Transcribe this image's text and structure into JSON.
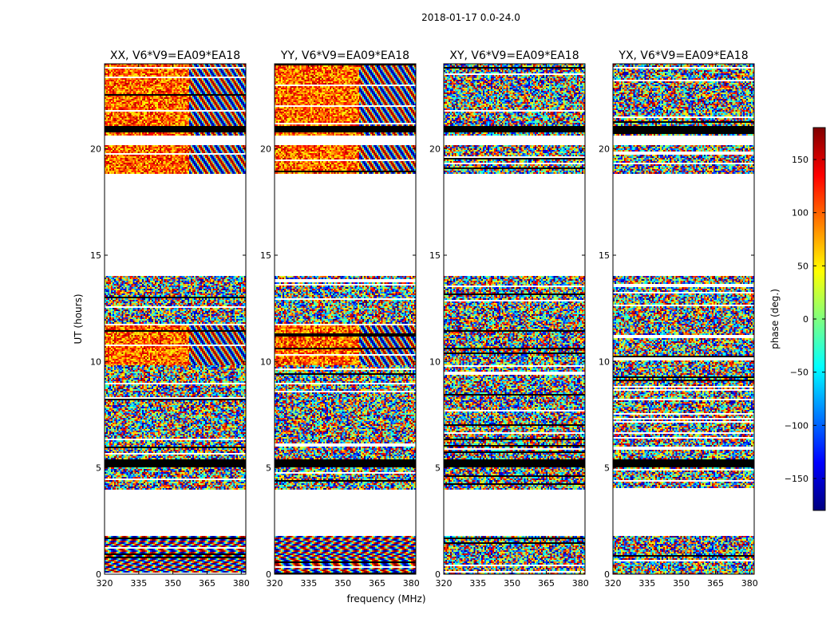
{
  "suptitle": "2018-01-17 0.0-24.0",
  "ylabel": "UT (hours)",
  "xlabel": "frequency (MHz)",
  "colorbar": {
    "label": "phase (deg.)",
    "ticks": [
      150,
      100,
      50,
      0,
      -50,
      -100,
      -150
    ],
    "tick_labels": [
      "150",
      "100",
      "50",
      "0",
      "−50",
      "−100",
      "−150"
    ],
    "range": [
      -180,
      180
    ],
    "colormap": "jet",
    "colors": [
      "#00007f",
      "#0000ff",
      "#007fff",
      "#00ffff",
      "#7fff7f",
      "#ffff00",
      "#ff7f00",
      "#ff0000",
      "#7f0000"
    ]
  },
  "chart_data": [
    {
      "type": "heatmap",
      "title": "XX, V6*V9=EA09*EA18",
      "x_ticks": [
        320,
        335,
        350,
        365,
        380
      ],
      "xlim": [
        320,
        382
      ],
      "y_ticks": [
        0,
        5,
        10,
        15,
        20
      ],
      "ylim": [
        0,
        24
      ],
      "value": "phase (deg.)",
      "flagged_ut": [
        [
          1.8,
          4.0
        ],
        [
          14.0,
          18.8
        ],
        [
          20.2,
          20.6
        ]
      ],
      "note_bands": [
        [
          5.0,
          5.4
        ],
        [
          20.8,
          21.1
        ]
      ]
    },
    {
      "type": "heatmap",
      "title": "YY, V6*V9=EA09*EA18",
      "x_ticks": [
        320,
        335,
        350,
        365,
        380
      ],
      "xlim": [
        320,
        382
      ],
      "y_ticks": [
        0,
        5,
        10,
        15,
        20
      ],
      "ylim": [
        0,
        24
      ],
      "value": "phase (deg.)",
      "flagged_ut": [
        [
          1.8,
          4.0
        ],
        [
          14.0,
          18.8
        ],
        [
          20.2,
          20.6
        ]
      ],
      "note_bands": [
        [
          5.0,
          5.4
        ],
        [
          20.8,
          21.1
        ]
      ]
    },
    {
      "type": "heatmap",
      "title": "XY, V6*V9=EA09*EA18",
      "x_ticks": [
        320,
        335,
        350,
        365,
        380
      ],
      "xlim": [
        320,
        382
      ],
      "y_ticks": [
        0,
        5,
        10,
        15,
        20
      ],
      "ylim": [
        0,
        24
      ],
      "value": "phase (deg.)",
      "flagged_ut": [
        [
          1.8,
          4.0
        ],
        [
          14.0,
          18.8
        ],
        [
          20.2,
          20.6
        ]
      ],
      "note_bands": [
        [
          5.0,
          5.4
        ],
        [
          20.8,
          21.1
        ]
      ]
    },
    {
      "type": "heatmap",
      "title": "YX, V6*V9=EA09*EA18",
      "x_ticks": [
        320,
        335,
        350,
        365,
        380
      ],
      "xlim": [
        320,
        382
      ],
      "y_ticks": [
        0,
        5,
        10,
        15,
        20
      ],
      "ylim": [
        0,
        24
      ],
      "value": "phase (deg.)",
      "flagged_ut": [
        [
          1.8,
          4.0
        ],
        [
          14.0,
          18.8
        ],
        [
          20.2,
          20.6
        ]
      ],
      "note_bands": [
        [
          5.0,
          5.4
        ],
        [
          20.8,
          21.1
        ]
      ]
    }
  ]
}
